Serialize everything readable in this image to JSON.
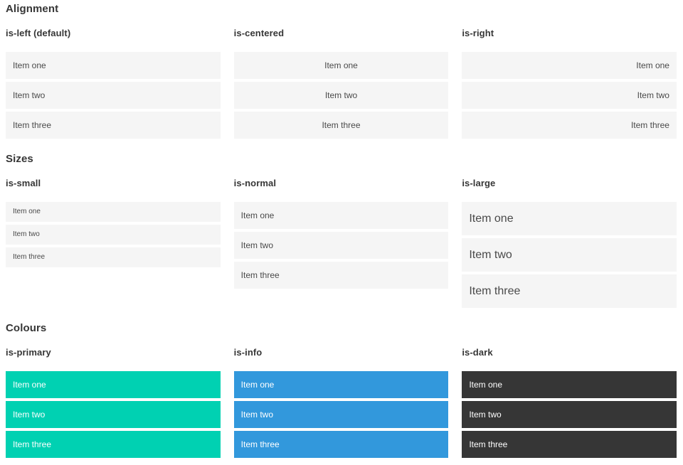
{
  "colors": {
    "page_bg": "#ffffff",
    "item_bg": "#f5f5f5",
    "item_text": "#4a4a4a",
    "heading_text": "#363636",
    "primary_bg": "#00d1b2",
    "info_bg": "#3298dc",
    "dark_bg": "#363636",
    "colored_item_text": "#ffffff"
  },
  "sections": [
    {
      "title": "Alignment",
      "columns": [
        {
          "label": "is-left (default)",
          "variant": "left",
          "items": [
            "Item one",
            "Item two",
            "Item three"
          ]
        },
        {
          "label": "is-centered",
          "variant": "centered",
          "items": [
            "Item one",
            "Item two",
            "Item three"
          ]
        },
        {
          "label": "is-right",
          "variant": "right",
          "items": [
            "Item one",
            "Item two",
            "Item three"
          ]
        }
      ]
    },
    {
      "title": "Sizes",
      "columns": [
        {
          "label": "is-small",
          "variant": "small",
          "items": [
            "Item one",
            "Item two",
            "Item three"
          ]
        },
        {
          "label": "is-normal",
          "variant": "normal",
          "items": [
            "Item one",
            "Item two",
            "Item three"
          ]
        },
        {
          "label": "is-large",
          "variant": "large",
          "items": [
            "Item one",
            "Item two",
            "Item three"
          ]
        }
      ]
    },
    {
      "title": "Colours",
      "columns": [
        {
          "label": "is-primary",
          "variant": "primary",
          "items": [
            "Item one",
            "Item two",
            "Item three"
          ]
        },
        {
          "label": "is-info",
          "variant": "info",
          "items": [
            "Item one",
            "Item two",
            "Item three"
          ]
        },
        {
          "label": "is-dark",
          "variant": "dark",
          "items": [
            "Item one",
            "Item two",
            "Item three"
          ]
        }
      ]
    }
  ]
}
